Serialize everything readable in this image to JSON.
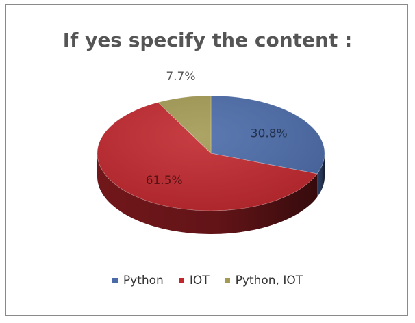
{
  "chart_data": {
    "type": "pie",
    "title": "If yes specify the content :",
    "categories": [
      "Python",
      "IOT",
      "Python, IOT"
    ],
    "values": [
      30.8,
      61.5,
      7.7
    ],
    "data_labels": [
      "30.8%",
      "61.5%",
      "7.7%"
    ],
    "colors": [
      "#4a6aa8",
      "#c0272d",
      "#a39a53"
    ],
    "legend_position": "bottom",
    "style": "3d"
  }
}
